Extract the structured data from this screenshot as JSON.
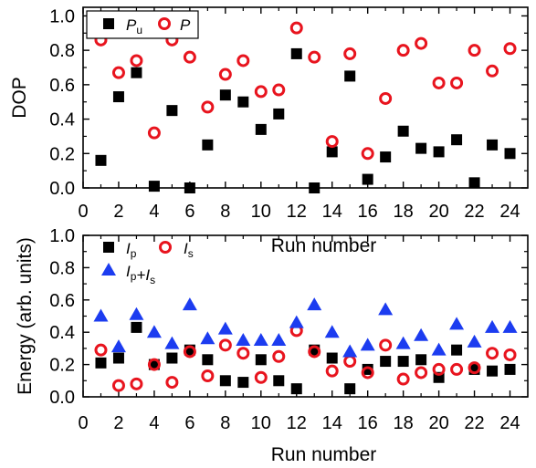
{
  "chart_data": [
    {
      "type": "scatter",
      "xlabel": "Run number",
      "ylabel": "DOP",
      "xlim": [
        0,
        25
      ],
      "ylim": [
        0,
        1.05
      ],
      "xticks": [
        "0",
        "2",
        "4",
        "6",
        "8",
        "10",
        "12",
        "14",
        "16",
        "18",
        "20",
        "22",
        "24"
      ],
      "yticks": [
        "0.0",
        "0.2",
        "0.4",
        "0.6",
        "0.8",
        "1.0"
      ],
      "legend_position": "top-left",
      "x": [
        1,
        2,
        3,
        4,
        5,
        6,
        7,
        8,
        9,
        10,
        11,
        12,
        13,
        14,
        15,
        16,
        17,
        18,
        19,
        20,
        21,
        22,
        23,
        24
      ],
      "series": [
        {
          "label_main": "P",
          "label_sub": "u",
          "marker": "square-filled",
          "color": "#000000",
          "values": [
            0.16,
            0.53,
            0.67,
            0.01,
            0.45,
            0.0,
            0.25,
            0.54,
            0.5,
            0.34,
            0.43,
            0.78,
            0.0,
            0.21,
            0.65,
            0.05,
            0.18,
            0.33,
            0.23,
            0.21,
            0.28,
            0.03,
            0.25,
            0.2
          ]
        },
        {
          "label_main": "P",
          "label_sub": "",
          "marker": "circle-open",
          "color": "#e8141e",
          "values": [
            0.86,
            0.67,
            0.74,
            0.32,
            0.86,
            0.76,
            0.47,
            0.66,
            0.74,
            0.56,
            0.57,
            0.93,
            0.76,
            0.27,
            0.78,
            0.2,
            0.52,
            0.8,
            0.84,
            0.61,
            0.61,
            0.8,
            0.68,
            0.81
          ]
        }
      ]
    },
    {
      "type": "scatter",
      "xlabel": "Run number",
      "ylabel": "Energy (arb. units)",
      "xlim": [
        0,
        25
      ],
      "ylim": [
        0,
        1.0
      ],
      "xticks": [
        "0",
        "2",
        "4",
        "6",
        "8",
        "10",
        "12",
        "14",
        "16",
        "18",
        "20",
        "22",
        "24"
      ],
      "yticks": [
        "0.0",
        "0.2",
        "0.4",
        "0.6",
        "0.8",
        "1.0"
      ],
      "legend_position": "top-left",
      "x": [
        1,
        2,
        3,
        4,
        5,
        6,
        7,
        8,
        9,
        10,
        11,
        12,
        13,
        14,
        15,
        16,
        17,
        18,
        19,
        20,
        21,
        22,
        23,
        24
      ],
      "series": [
        {
          "label_main": "I",
          "label_sub": "p",
          "marker": "square-filled",
          "color": "#000000",
          "values": [
            0.21,
            0.24,
            0.43,
            0.2,
            0.24,
            0.29,
            0.23,
            0.1,
            0.09,
            0.23,
            0.1,
            0.05,
            0.29,
            0.24,
            0.05,
            0.17,
            0.22,
            0.22,
            0.23,
            0.12,
            0.29,
            0.17,
            0.16,
            0.17
          ]
        },
        {
          "label_main": "I",
          "label_sub": "s",
          "marker": "circle-open",
          "color": "#e8141e",
          "values": [
            0.29,
            0.07,
            0.08,
            0.2,
            0.09,
            0.28,
            0.13,
            0.32,
            0.27,
            0.12,
            0.25,
            0.41,
            0.28,
            0.16,
            0.22,
            0.15,
            0.32,
            0.11,
            0.15,
            0.17,
            0.17,
            0.18,
            0.27,
            0.26
          ]
        },
        {
          "label_main": "I",
          "label_sub": "p",
          "label_plus": "+I",
          "label_sub2": "s",
          "marker": "triangle-filled",
          "color": "#1c3cf0",
          "values": [
            0.5,
            0.31,
            0.51,
            0.4,
            0.33,
            0.57,
            0.36,
            0.42,
            0.35,
            0.35,
            0.35,
            0.46,
            0.57,
            0.4,
            0.28,
            0.32,
            0.54,
            0.33,
            0.38,
            0.29,
            0.45,
            0.34,
            0.43,
            0.43
          ]
        }
      ]
    }
  ]
}
